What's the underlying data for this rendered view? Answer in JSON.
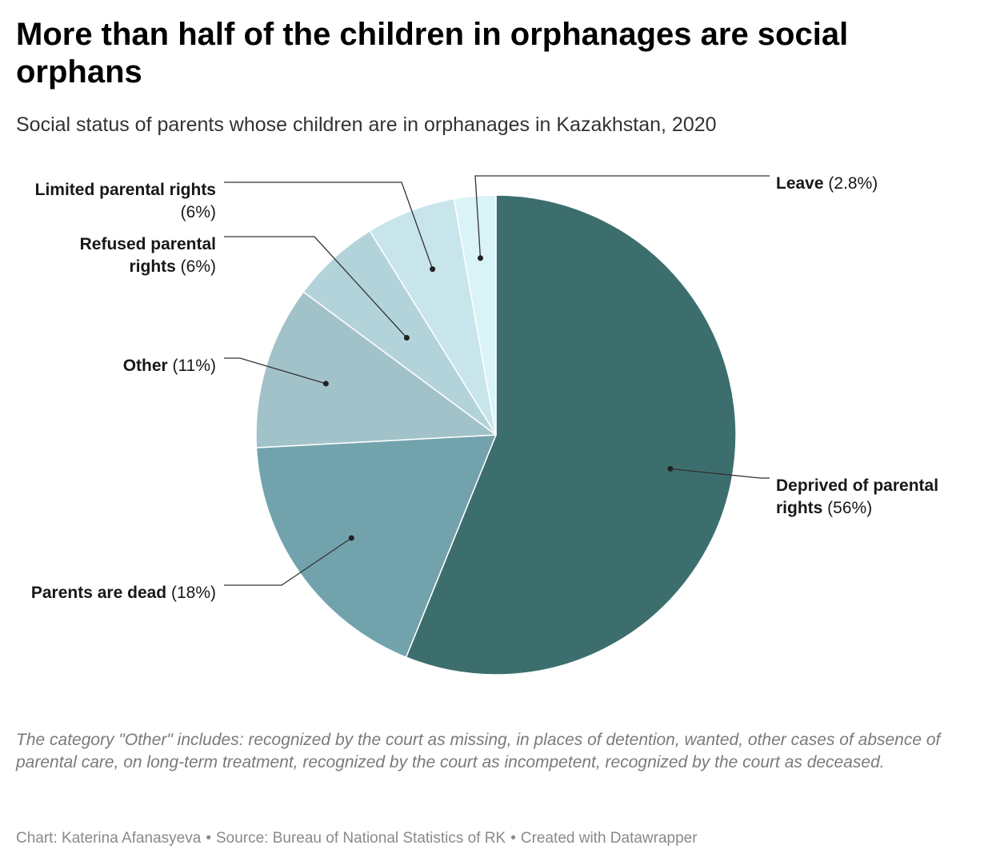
{
  "title": "More than half of the children in orphanages are social orphans",
  "subtitle": "Social status of parents whose children are in orphanages in Kazakhstan, 2020",
  "note": "The category \"Other\" includes: recognized by the court as missing, in places of detention, wanted, other cases of absence of parental care, on long-term treatment, recognized by the court as incompetent, recognized by the court as deceased.",
  "footer": {
    "chart_credit": "Chart: Katerina Afanasyeva",
    "source": "Source: Bureau of National Statistics of RK",
    "created_with": "Created with Datawrapper",
    "separator": "•"
  },
  "chart_data": {
    "type": "pie",
    "title": "More than half of the children in orphanages are social orphans",
    "subtitle": "Social status of parents whose children are in orphanages in Kazakhstan, 2020",
    "start": "12 o'clock, clockwise",
    "slices": [
      {
        "label": "Deprived of parental rights",
        "value": 56,
        "value_label": "(56%)",
        "color": "#3d6e6e"
      },
      {
        "label": "Parents are dead",
        "value": 18,
        "value_label": "(18%)",
        "color": "#72a3ad"
      },
      {
        "label": "Other",
        "value": 11,
        "value_label": "(11%)",
        "color": "#a2c2c9"
      },
      {
        "label": "Refused parental rights",
        "value": 6,
        "value_label": "(6%)",
        "color": "#b3d3da"
      },
      {
        "label": "Limited parental rights",
        "value": 6,
        "value_label": "(6%)",
        "color": "#c8e5ec"
      },
      {
        "label": "Leave",
        "value": 2.8,
        "value_label": "(2.8%)",
        "color": "#d9f3f7"
      }
    ]
  }
}
